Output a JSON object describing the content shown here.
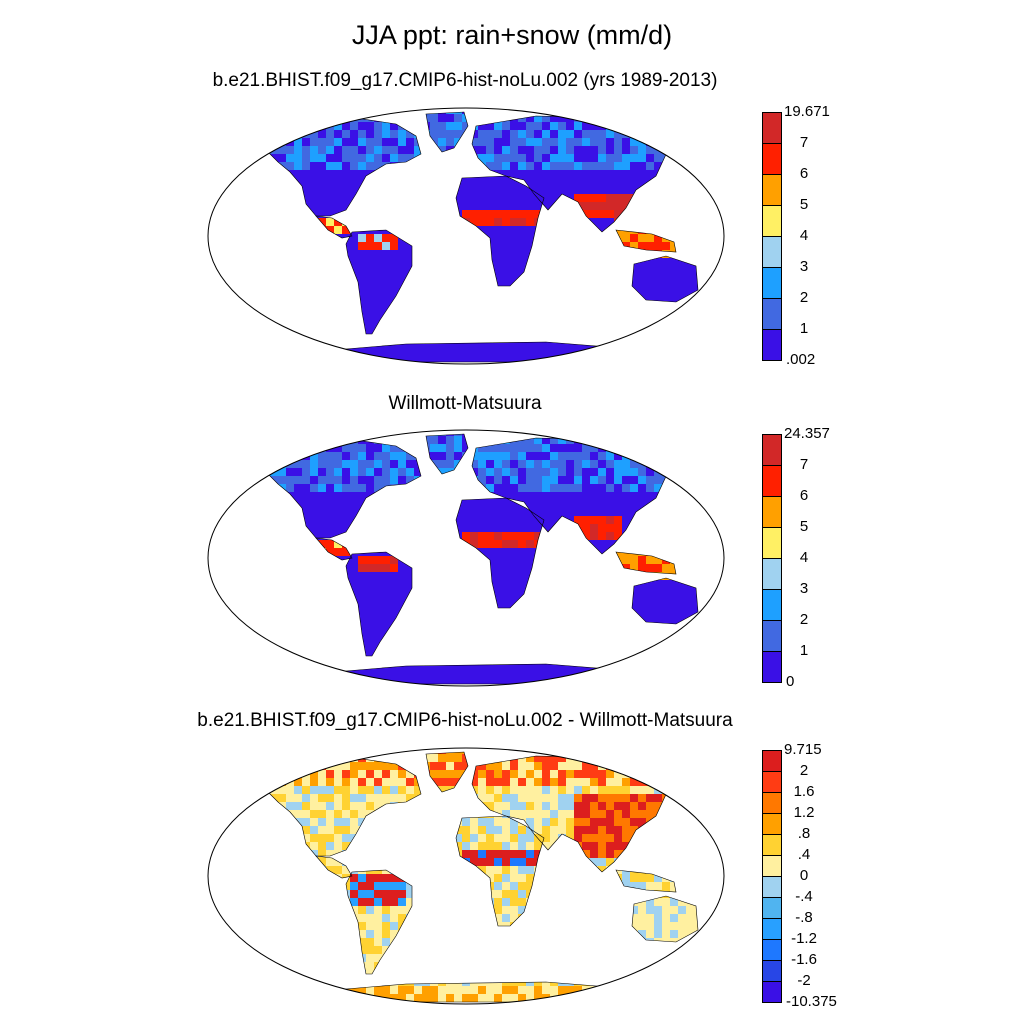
{
  "title": "JJA ppt: rain+snow (mm/d)",
  "panels": [
    {
      "id": "model",
      "title": "b.e21.BHIST.f09_g17.CMIP6-hist-noLu.002 (yrs 1989-2013)",
      "colorbar": {
        "labels": [
          "19.671",
          "7",
          "6",
          "5",
          "4",
          "3",
          "2",
          "1",
          ".002"
        ],
        "colors": [
          "#3a10e6",
          "#4169e1",
          "#1ea0ff",
          "#a0d2f0",
          "#fff064",
          "#ffa000",
          "#ff2000",
          "#d22828"
        ]
      }
    },
    {
      "id": "obs",
      "title": "Willmott-Matsuura",
      "colorbar": {
        "labels": [
          "24.357",
          "7",
          "6",
          "5",
          "4",
          "3",
          "2",
          "1",
          "0"
        ],
        "colors": [
          "#3a10e6",
          "#4169e1",
          "#1ea0ff",
          "#a0d2f0",
          "#fff064",
          "#ffa000",
          "#ff2000",
          "#d22828"
        ]
      }
    },
    {
      "id": "diff",
      "title": "b.e21.BHIST.f09_g17.CMIP6-hist-noLu.002 - Willmott-Matsuura",
      "colorbar": {
        "labels": [
          "9.715",
          "2",
          "1.6",
          "1.2",
          ".8",
          ".4",
          "0",
          "-.4",
          "-.8",
          "-1.2",
          "-1.6",
          "-2",
          "-10.375"
        ],
        "colors": [
          "#3a10e6",
          "#2846e6",
          "#1e78ff",
          "#28a0ff",
          "#50b4f0",
          "#a0d2f0",
          "#fff0a0",
          "#ffd232",
          "#ffa000",
          "#ff7800",
          "#ff3c14",
          "#dc1e1e"
        ]
      }
    }
  ]
}
